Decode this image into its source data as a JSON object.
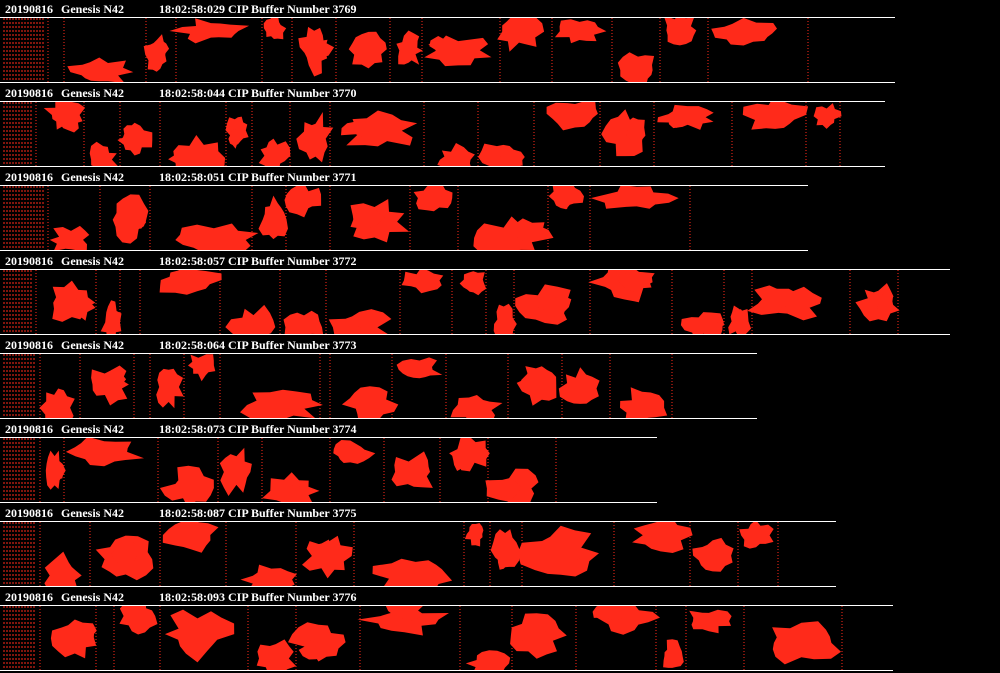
{
  "colors": {
    "background": "#000000",
    "particle": "#ff2a1a",
    "text": "#ffffff"
  },
  "records": [
    {
      "date": "20190816",
      "flight": "Genesis N42",
      "time_label": "18:02:58:029 CIP Buffer Number 3769"
    },
    {
      "date": "20190816",
      "flight": "Genesis N42",
      "time_label": "18:02:58:044 CIP Buffer Number 3770"
    },
    {
      "date": "20190816",
      "flight": "Genesis N42",
      "time_label": "18:02:58:051 CIP Buffer Number 3771"
    },
    {
      "date": "20190816",
      "flight": "Genesis N42",
      "time_label": "18:02:58:057 CIP Buffer Number 3772"
    },
    {
      "date": "20190816",
      "flight": "Genesis N42",
      "time_label": "18:02:58:064 CIP Buffer Number 3773"
    },
    {
      "date": "20190816",
      "flight": "Genesis N42",
      "time_label": "18:02:58:073 CIP Buffer Number 3774"
    },
    {
      "date": "20190816",
      "flight": "Genesis N42",
      "time_label": "18:02:58:087 CIP Buffer Number 3775"
    },
    {
      "date": "20190816",
      "flight": "Genesis N42",
      "time_label": "18:02:58:093 CIP Buffer Number 3776"
    }
  ]
}
